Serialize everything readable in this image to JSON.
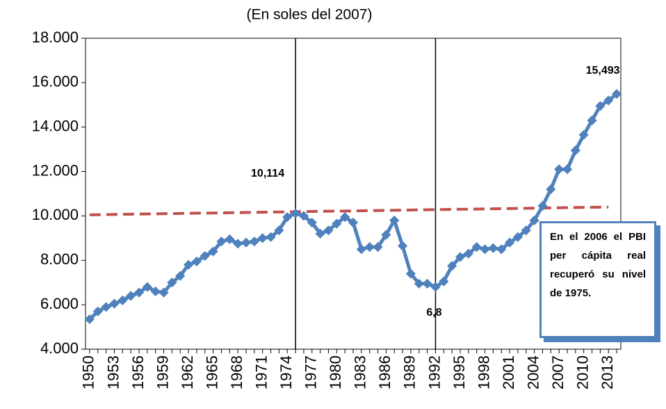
{
  "chart_data": {
    "type": "line",
    "title": "(En soles del 2007)",
    "x": [
      1950,
      1951,
      1952,
      1953,
      1954,
      1955,
      1956,
      1957,
      1958,
      1959,
      1960,
      1961,
      1962,
      1963,
      1964,
      1965,
      1966,
      1967,
      1968,
      1969,
      1970,
      1971,
      1972,
      1973,
      1974,
      1975,
      1976,
      1977,
      1978,
      1979,
      1980,
      1981,
      1982,
      1983,
      1984,
      1985,
      1986,
      1987,
      1988,
      1989,
      1990,
      1991,
      1992,
      1993,
      1994,
      1995,
      1996,
      1997,
      1998,
      1999,
      2000,
      2001,
      2002,
      2003,
      2004,
      2005,
      2006,
      2007,
      2008,
      2009,
      2010,
      2011,
      2012,
      2013,
      2014
    ],
    "series": [
      {
        "color": "#4f81bd",
        "values": [
          5350,
          5700,
          5900,
          6050,
          6200,
          6400,
          6550,
          6800,
          6600,
          6550,
          7000,
          7300,
          7800,
          7950,
          8200,
          8400,
          8850,
          8950,
          8750,
          8800,
          8850,
          9000,
          9050,
          9350,
          9950,
          10114,
          10000,
          9700,
          9200,
          9350,
          9650,
          9950,
          9700,
          8500,
          8600,
          8600,
          9150,
          9800,
          8650,
          7400,
          6950,
          6950,
          6800,
          7050,
          7750,
          8150,
          8300,
          8600,
          8500,
          8550,
          8500,
          8800,
          9050,
          9350,
          9800,
          10450,
          11200,
          12100,
          12100,
          12950,
          13650,
          14300,
          14950,
          15200,
          15493
        ]
      }
    ],
    "trend": {
      "color": "#c0504d",
      "x": [
        1950,
        2013
      ],
      "values": [
        10050,
        10400
      ]
    },
    "vlines": [
      1975,
      1992
    ],
    "annotations": [
      {
        "text": "10,114",
        "x": 1975
      },
      {
        "text": "6,8",
        "x": 1992
      },
      {
        "text": "15,493",
        "x": 2014
      }
    ],
    "note": "En el 2006 el PBI per cápita real recuperó su nivel de 1975.",
    "xlim": [
      1949.5,
      2014.5
    ],
    "xticks": [
      1950,
      1953,
      1956,
      1959,
      1962,
      1965,
      1968,
      1971,
      1974,
      1977,
      1980,
      1983,
      1986,
      1989,
      1992,
      1995,
      1998,
      2001,
      2004,
      2007,
      2010,
      2013
    ],
    "ylim": [
      4000,
      18000
    ],
    "yticks": [
      {
        "value": 4000,
        "label": "4.000"
      },
      {
        "value": 6000,
        "label": "6.000"
      },
      {
        "value": 8000,
        "label": "8.000"
      },
      {
        "value": 10000,
        "label": "10.000"
      },
      {
        "value": 12000,
        "label": "12.000"
      },
      {
        "value": 14000,
        "label": "14.000"
      },
      {
        "value": 16000,
        "label": "16.000"
      },
      {
        "value": 18000,
        "label": "18.000"
      }
    ]
  }
}
